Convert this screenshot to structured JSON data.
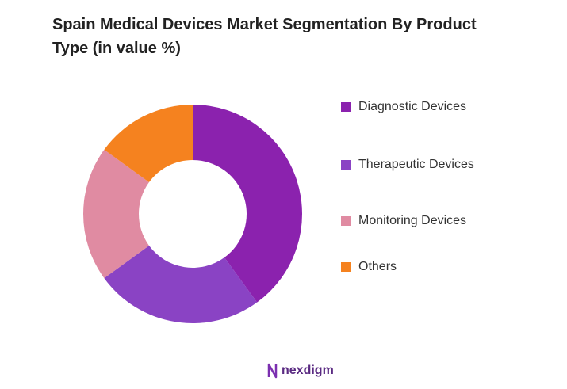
{
  "chart_data": {
    "type": "donut",
    "title": "Spain Medical Devices Market Segmentation By Product Type (in value %)",
    "categories": [
      "Diagnostic Devices",
      "Therapeutic Devices",
      "Monitoring Devices",
      "Others"
    ],
    "values": [
      40,
      25,
      20,
      15
    ],
    "colors": [
      "#8B22AE",
      "#8A43C4",
      "#E08BA2",
      "#F5821F"
    ],
    "legend": "right"
  },
  "brand": "nexdigm"
}
